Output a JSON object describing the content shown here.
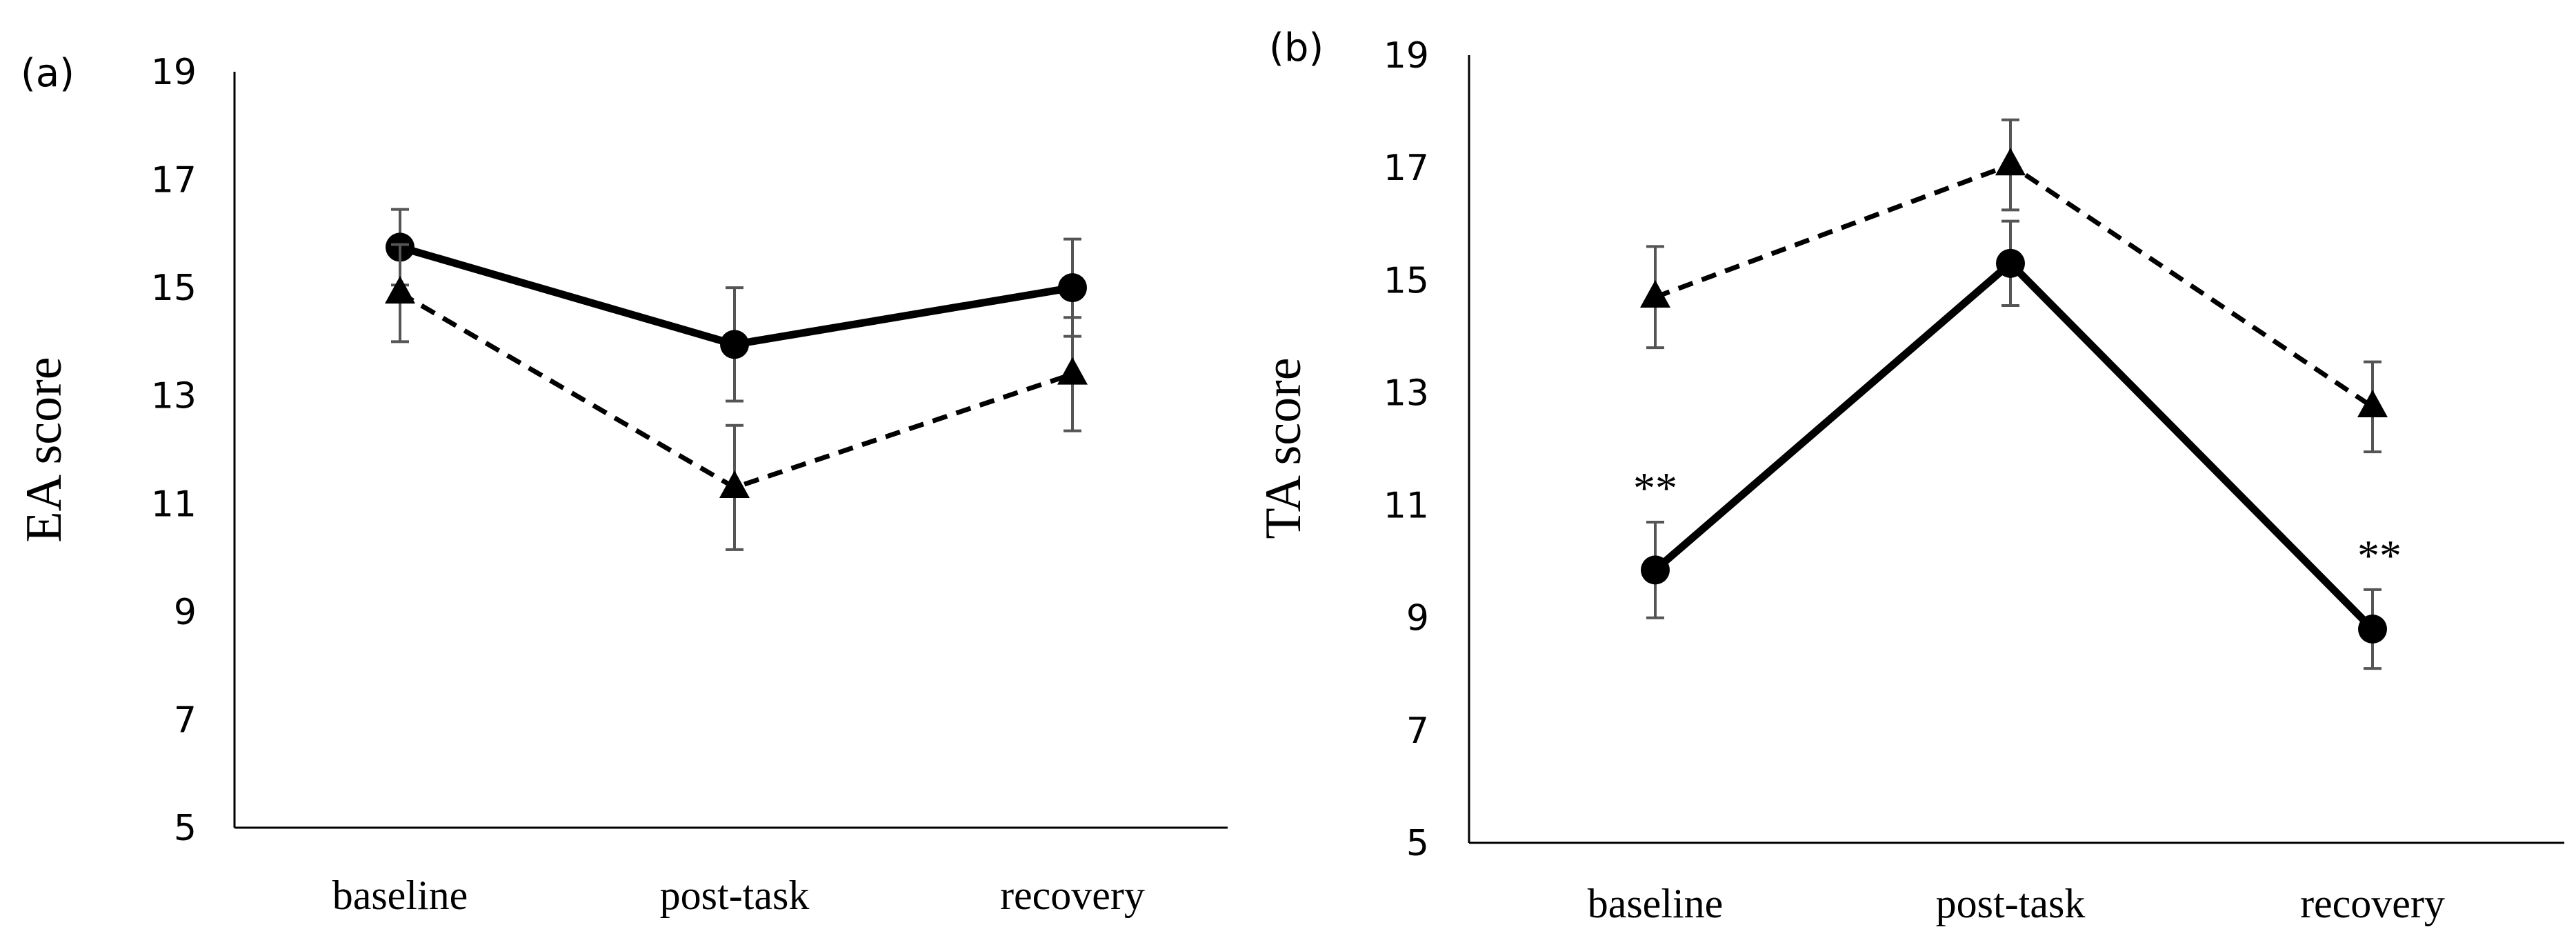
{
  "chart_data": [
    {
      "panel_label": "(a)",
      "type": "line",
      "ylabel": "EA score",
      "xlabel": "",
      "categories": [
        "baseline",
        "post-task",
        "recovery"
      ],
      "ylim": [
        5,
        19
      ],
      "yticks": [
        5,
        7,
        9,
        11,
        13,
        15,
        17,
        19
      ],
      "series": [
        {
          "name": "solid-circle",
          "line_style": "solid",
          "marker": "circle",
          "values": [
            15.75,
            13.95,
            15.0
          ],
          "error": [
            0.7,
            1.05,
            0.9
          ]
        },
        {
          "name": "dashed-triangle",
          "line_style": "dashed",
          "marker": "triangle",
          "values": [
            14.9,
            11.3,
            13.4
          ],
          "error": [
            0.9,
            1.15,
            1.05
          ]
        }
      ],
      "annotations": []
    },
    {
      "panel_label": "(b)",
      "type": "line",
      "ylabel": "TA score",
      "xlabel": "",
      "categories": [
        "baseline",
        "post-task",
        "recovery"
      ],
      "ylim": [
        5,
        19
      ],
      "yticks": [
        5,
        7,
        9,
        11,
        13,
        15,
        17,
        19
      ],
      "series": [
        {
          "name": "solid-circle",
          "line_style": "solid",
          "marker": "circle",
          "values": [
            9.85,
            15.3,
            8.8
          ],
          "error": [
            0.85,
            0.75,
            0.7
          ]
        },
        {
          "name": "dashed-triangle",
          "line_style": "dashed",
          "marker": "triangle",
          "values": [
            14.7,
            17.05,
            12.75
          ],
          "error": [
            0.9,
            0.8,
            0.8
          ]
        }
      ],
      "annotations": [
        {
          "category_index": 0,
          "series": "solid-circle",
          "text": "**"
        },
        {
          "category_index": 2,
          "series": "solid-circle",
          "text": "**"
        }
      ]
    }
  ]
}
